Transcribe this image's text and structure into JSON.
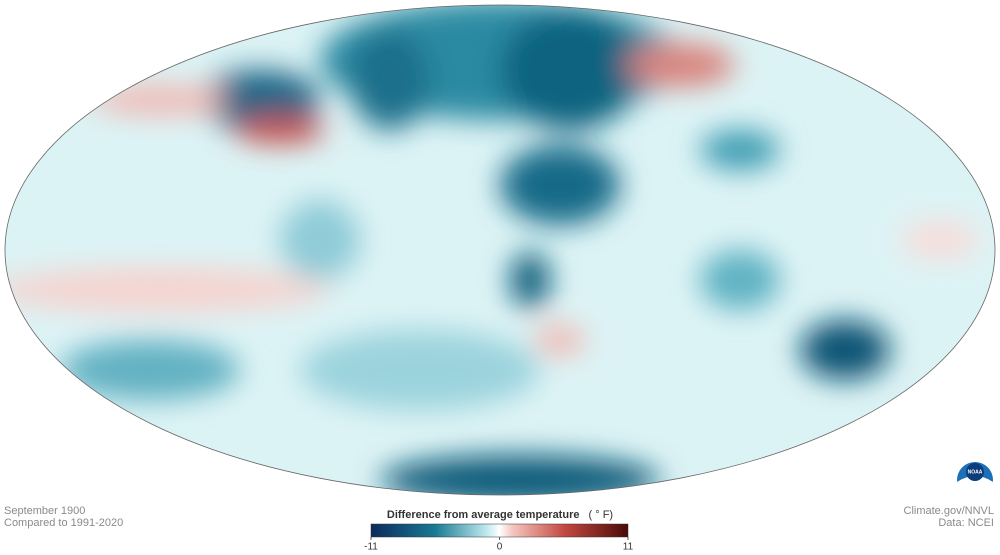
{
  "map": {
    "date": "September 1900",
    "baseline": "Compared to 1991-2020"
  },
  "legend": {
    "title": "Difference from average temperature",
    "unit": "( ° F)",
    "ticks": [
      -11,
      0,
      11
    ]
  },
  "credits": {
    "source": "Climate.gov/NNVL",
    "data": "Data: NCEI"
  },
  "logo": "NOAA"
}
